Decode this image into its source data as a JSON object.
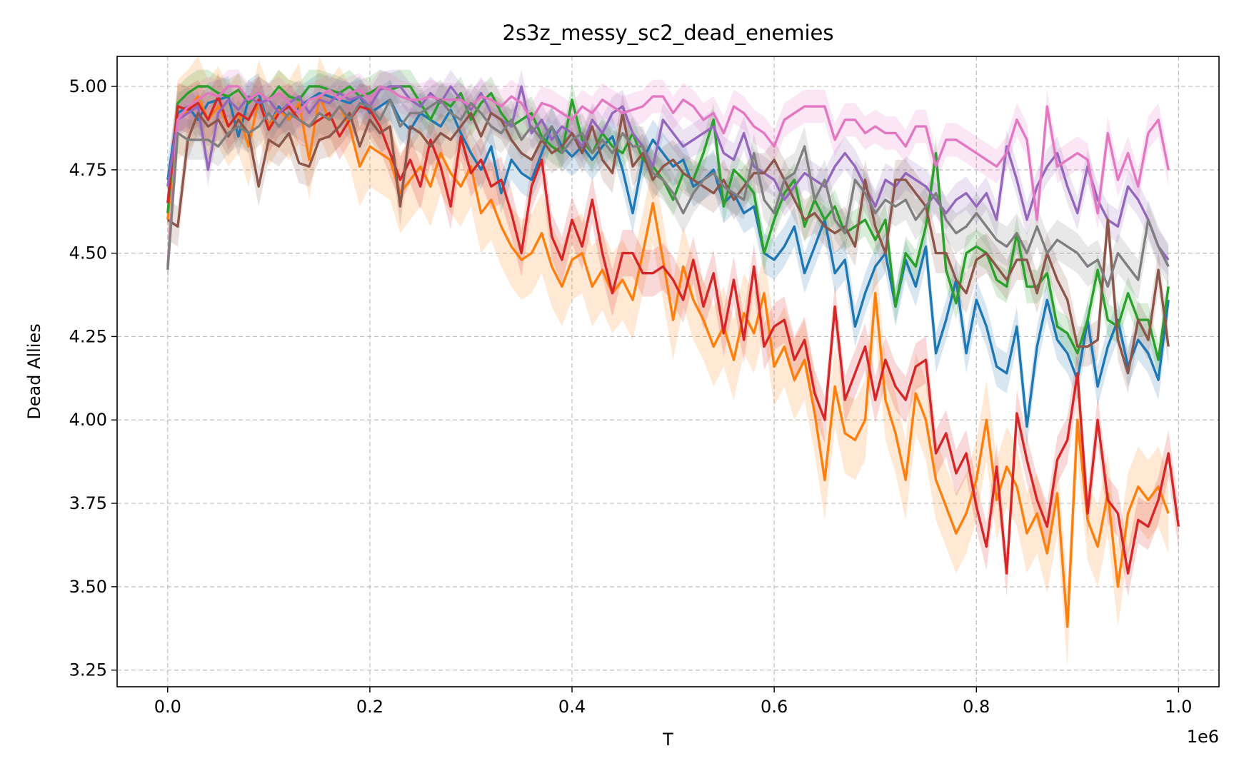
{
  "chart_data": {
    "type": "line",
    "title": "2s3z_messy_sc2_dead_enemies",
    "xlabel": "T",
    "ylabel": "Dead Allies",
    "x_offset_label": "1e6",
    "xlim": [
      -0.05,
      1.04
    ],
    "ylim": [
      3.2,
      5.09
    ],
    "xticks": [
      0.0,
      0.2,
      0.4,
      0.6,
      0.8,
      1.0
    ],
    "xtick_labels": [
      "0.0",
      "0.2",
      "0.4",
      "0.6",
      "0.8",
      "1.0"
    ],
    "yticks": [
      3.25,
      3.5,
      3.75,
      4.0,
      4.25,
      4.5,
      4.75,
      5.0
    ],
    "ytick_labels": [
      "3.25",
      "3.50",
      "3.75",
      "4.00",
      "4.25",
      "4.50",
      "4.75",
      "5.00"
    ],
    "grid": true,
    "x_step": 0.01,
    "series": [
      {
        "color": "#1f77b4",
        "band": 0.06,
        "values": [
          4.72,
          4.92,
          4.94,
          4.9,
          4.95,
          4.96,
          4.97,
          4.85,
          4.96,
          4.98,
          4.88,
          4.94,
          4.9,
          4.94,
          4.96,
          4.98,
          4.97,
          4.96,
          4.95,
          4.97,
          4.92,
          4.94,
          4.96,
          4.9,
          4.87,
          4.92,
          4.9,
          4.88,
          4.93,
          4.86,
          4.8,
          4.75,
          4.82,
          4.68,
          4.78,
          4.74,
          4.72,
          4.8,
          4.88,
          4.82,
          4.79,
          4.82,
          4.78,
          4.82,
          4.85,
          4.75,
          4.62,
          4.78,
          4.84,
          4.8,
          4.76,
          4.78,
          4.7,
          4.72,
          4.75,
          4.65,
          4.68,
          4.62,
          4.64,
          4.5,
          4.48,
          4.52,
          4.58,
          4.44,
          4.52,
          4.6,
          4.44,
          4.48,
          4.28,
          4.38,
          4.46,
          4.5,
          4.34,
          4.48,
          4.4,
          4.52,
          4.2,
          4.3,
          4.42,
          4.2,
          4.36,
          4.28,
          4.16,
          4.14,
          4.28,
          3.98,
          4.22,
          4.36,
          4.24,
          4.2,
          4.12,
          4.3,
          4.1,
          4.22,
          4.3,
          4.16,
          4.24,
          4.2,
          4.12,
          4.36
        ]
      },
      {
        "color": "#ff7f0e",
        "band": 0.12,
        "values": [
          4.6,
          4.9,
          4.93,
          4.97,
          4.9,
          4.94,
          4.88,
          4.92,
          4.82,
          4.96,
          4.88,
          4.93,
          4.9,
          4.95,
          4.78,
          4.97,
          4.9,
          4.94,
          4.88,
          4.76,
          4.82,
          4.8,
          4.78,
          4.68,
          4.72,
          4.76,
          4.7,
          4.8,
          4.74,
          4.7,
          4.76,
          4.62,
          4.66,
          4.58,
          4.52,
          4.48,
          4.5,
          4.56,
          4.46,
          4.4,
          4.48,
          4.5,
          4.4,
          4.45,
          4.38,
          4.42,
          4.36,
          4.5,
          4.65,
          4.48,
          4.3,
          4.46,
          4.36,
          4.3,
          4.22,
          4.28,
          4.18,
          4.32,
          4.26,
          4.38,
          4.16,
          4.22,
          4.12,
          4.18,
          4.02,
          3.82,
          4.1,
          3.96,
          3.94,
          4.0,
          4.38,
          4.06,
          3.96,
          3.82,
          4.08,
          4.0,
          3.82,
          3.74,
          3.66,
          3.72,
          3.82,
          4.0,
          3.76,
          3.86,
          3.8,
          3.66,
          3.72,
          3.6,
          3.78,
          3.38,
          4.0,
          3.7,
          3.62,
          3.78,
          3.5,
          3.72,
          3.8,
          3.76,
          3.8,
          3.72
        ]
      },
      {
        "color": "#2ca02c",
        "band": 0.05,
        "values": [
          4.62,
          4.95,
          4.98,
          5.0,
          5.0,
          4.98,
          4.97,
          4.99,
          4.95,
          4.98,
          4.96,
          5.0,
          4.97,
          4.96,
          5.0,
          5.0,
          4.99,
          4.98,
          5.0,
          4.97,
          4.98,
          5.0,
          4.99,
          5.0,
          5.0,
          4.95,
          4.9,
          4.96,
          4.94,
          4.98,
          4.9,
          4.95,
          4.98,
          4.92,
          4.88,
          4.9,
          4.92,
          4.85,
          4.82,
          4.8,
          4.96,
          4.84,
          4.8,
          4.86,
          4.82,
          4.8,
          4.86,
          4.78,
          4.76,
          4.72,
          4.66,
          4.74,
          4.72,
          4.8,
          4.9,
          4.64,
          4.75,
          4.72,
          4.68,
          4.5,
          4.6,
          4.68,
          4.72,
          4.58,
          4.66,
          4.6,
          4.64,
          4.56,
          4.58,
          4.6,
          4.54,
          4.6,
          4.34,
          4.5,
          4.46,
          4.58,
          4.8,
          4.45,
          4.35,
          4.5,
          4.52,
          4.5,
          4.42,
          4.4,
          4.56,
          4.4,
          4.4,
          4.44,
          4.28,
          4.26,
          4.2,
          4.3,
          4.45,
          4.3,
          4.28,
          4.38,
          4.3,
          4.3,
          4.18,
          4.4
        ]
      },
      {
        "color": "#d62728",
        "band": 0.07,
        "values": [
          4.65,
          4.94,
          4.93,
          4.95,
          4.9,
          4.97,
          4.88,
          4.92,
          4.9,
          4.96,
          4.87,
          4.92,
          4.94,
          4.9,
          4.88,
          4.9,
          4.92,
          4.85,
          4.9,
          4.94,
          4.93,
          4.88,
          4.8,
          4.72,
          4.78,
          4.7,
          4.84,
          4.76,
          4.64,
          4.85,
          4.74,
          4.78,
          4.7,
          4.72,
          4.62,
          4.5,
          4.7,
          4.78,
          4.55,
          4.48,
          4.6,
          4.52,
          4.66,
          4.5,
          4.38,
          4.5,
          4.5,
          4.44,
          4.44,
          4.46,
          4.42,
          4.36,
          4.48,
          4.34,
          4.44,
          4.26,
          4.42,
          4.24,
          4.46,
          4.22,
          4.28,
          4.3,
          4.18,
          4.24,
          4.08,
          4.0,
          4.34,
          4.06,
          4.14,
          4.22,
          4.06,
          4.18,
          4.1,
          4.06,
          4.16,
          4.18,
          3.9,
          3.96,
          3.84,
          3.9,
          3.74,
          3.62,
          3.86,
          3.54,
          4.02,
          3.88,
          3.76,
          3.68,
          3.88,
          3.94,
          4.14,
          3.72,
          4.0,
          3.76,
          3.72,
          3.54,
          3.7,
          3.68,
          3.76,
          3.9,
          3.68
        ]
      },
      {
        "color": "#9467bd",
        "band": 0.05,
        "values": [
          4.7,
          4.9,
          4.92,
          4.94,
          4.75,
          4.92,
          4.96,
          4.93,
          4.97,
          4.95,
          4.96,
          4.92,
          4.95,
          4.97,
          4.92,
          4.96,
          4.95,
          4.98,
          4.96,
          4.97,
          4.94,
          4.99,
          5.0,
          5.0,
          4.96,
          4.94,
          4.98,
          4.95,
          5.0,
          4.96,
          4.93,
          4.98,
          4.92,
          4.9,
          4.88,
          5.0,
          4.86,
          4.9,
          4.84,
          4.88,
          4.86,
          4.82,
          4.9,
          4.86,
          4.92,
          4.94,
          4.86,
          4.82,
          4.76,
          4.9,
          4.86,
          4.82,
          4.84,
          4.86,
          4.88,
          4.8,
          4.78,
          4.86,
          4.76,
          4.74,
          4.72,
          4.66,
          4.7,
          4.74,
          4.72,
          4.7,
          4.76,
          4.8,
          4.76,
          4.7,
          4.64,
          4.72,
          4.7,
          4.74,
          4.72,
          4.7,
          4.66,
          4.62,
          4.66,
          4.68,
          4.64,
          4.68,
          4.6,
          4.82,
          4.72,
          4.6,
          4.7,
          4.76,
          4.8,
          4.7,
          4.62,
          4.76,
          4.66,
          4.6,
          4.58,
          4.7,
          4.66,
          4.6,
          4.52,
          4.48
        ]
      },
      {
        "color": "#8c564b",
        "band": 0.06,
        "values": [
          4.6,
          4.58,
          4.84,
          4.92,
          4.88,
          4.9,
          4.85,
          4.9,
          4.86,
          4.7,
          4.84,
          4.82,
          4.86,
          4.77,
          4.76,
          4.84,
          4.85,
          4.88,
          4.92,
          4.82,
          4.9,
          4.86,
          4.88,
          4.64,
          4.88,
          4.86,
          4.82,
          4.86,
          4.84,
          4.88,
          4.92,
          4.85,
          4.92,
          4.9,
          4.84,
          4.8,
          4.78,
          4.84,
          4.8,
          4.82,
          4.86,
          4.8,
          4.88,
          4.78,
          4.74,
          4.92,
          4.76,
          4.8,
          4.72,
          4.76,
          4.78,
          4.74,
          4.72,
          4.7,
          4.68,
          4.72,
          4.66,
          4.7,
          4.74,
          4.74,
          4.78,
          4.72,
          4.66,
          4.6,
          4.62,
          4.58,
          4.56,
          4.58,
          4.52,
          4.72,
          4.58,
          4.5,
          4.72,
          4.72,
          4.68,
          4.64,
          4.5,
          4.5,
          4.42,
          4.38,
          4.48,
          4.5,
          4.46,
          4.42,
          4.48,
          4.48,
          4.38,
          4.5,
          4.42,
          4.36,
          4.22,
          4.22,
          4.24,
          4.6,
          4.24,
          4.14,
          4.3,
          4.24,
          4.45,
          4.22
        ]
      },
      {
        "color": "#e377c2",
        "band": 0.05,
        "values": [
          4.46,
          4.9,
          4.94,
          4.96,
          4.98,
          4.97,
          5.0,
          5.0,
          4.96,
          4.98,
          4.96,
          4.98,
          4.95,
          4.92,
          4.96,
          4.97,
          4.99,
          4.96,
          4.98,
          4.99,
          4.96,
          5.0,
          4.99,
          4.97,
          4.96,
          4.96,
          4.97,
          4.96,
          4.96,
          4.96,
          4.94,
          4.97,
          4.96,
          4.94,
          4.97,
          4.95,
          4.9,
          4.95,
          4.94,
          4.92,
          4.9,
          4.94,
          4.92,
          4.96,
          4.94,
          4.92,
          4.93,
          4.94,
          4.97,
          4.97,
          4.92,
          4.96,
          4.94,
          4.9,
          4.92,
          4.86,
          4.94,
          4.92,
          4.88,
          4.86,
          4.82,
          4.9,
          4.92,
          4.94,
          4.94,
          4.94,
          4.84,
          4.9,
          4.9,
          4.86,
          4.88,
          4.86,
          4.86,
          4.82,
          4.88,
          4.88,
          4.76,
          4.84,
          4.84,
          4.82,
          4.8,
          4.78,
          4.76,
          4.8,
          4.9,
          4.84,
          4.6,
          4.94,
          4.76,
          4.78,
          4.8,
          4.78,
          4.62,
          4.86,
          4.72,
          4.8,
          4.7,
          4.86,
          4.9,
          4.75
        ]
      },
      {
        "color": "#7f7f7f",
        "band": 0.06,
        "values": [
          4.45,
          4.86,
          4.84,
          4.84,
          4.84,
          4.82,
          4.86,
          4.88,
          4.86,
          4.88,
          4.92,
          4.88,
          4.92,
          4.9,
          4.88,
          4.92,
          4.9,
          4.94,
          4.9,
          4.95,
          4.94,
          4.9,
          4.96,
          4.88,
          4.92,
          4.92,
          4.94,
          4.96,
          4.92,
          4.9,
          4.95,
          4.92,
          4.88,
          4.86,
          4.9,
          4.84,
          4.88,
          4.84,
          4.88,
          4.8,
          4.84,
          4.86,
          4.8,
          4.84,
          4.8,
          4.86,
          4.82,
          4.82,
          4.74,
          4.72,
          4.68,
          4.62,
          4.68,
          4.72,
          4.74,
          4.7,
          4.68,
          4.66,
          4.8,
          4.66,
          4.62,
          4.72,
          4.74,
          4.82,
          4.66,
          4.72,
          4.6,
          4.56,
          4.72,
          4.68,
          4.62,
          4.66,
          4.64,
          4.66,
          4.6,
          4.64,
          4.68,
          4.6,
          4.56,
          4.58,
          4.62,
          4.58,
          4.54,
          4.52,
          4.56,
          4.5,
          4.58,
          4.5,
          4.54,
          4.52,
          4.5,
          4.46,
          4.48,
          4.4,
          4.5,
          4.46,
          4.42,
          4.6,
          4.52,
          4.46
        ]
      }
    ]
  }
}
